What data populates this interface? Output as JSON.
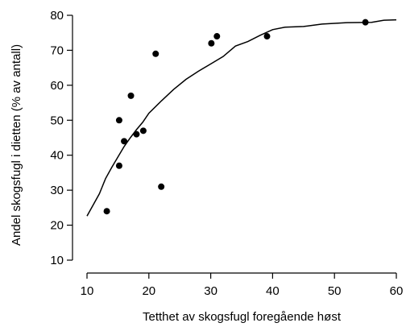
{
  "chart_data": {
    "type": "scatter",
    "title": "",
    "xlabel": "Tetthet av skogsfugl foregående høst",
    "ylabel": "Andel skogsfugl i dietten (% av antall)",
    "xlim": [
      10,
      60
    ],
    "ylim": [
      10,
      80
    ],
    "xticks": [
      10,
      20,
      30,
      40,
      50,
      60
    ],
    "yticks": [
      10,
      20,
      30,
      40,
      50,
      60,
      70,
      80
    ],
    "grid": false,
    "legend": "none",
    "series": [
      {
        "type": "scatter",
        "color": "#000000",
        "points": [
          {
            "x": 13.2,
            "y": 24
          },
          {
            "x": 15.2,
            "y": 37
          },
          {
            "x": 15.2,
            "y": 50
          },
          {
            "x": 16.0,
            "y": 44
          },
          {
            "x": 17.1,
            "y": 57
          },
          {
            "x": 18.0,
            "y": 46
          },
          {
            "x": 19.1,
            "y": 47
          },
          {
            "x": 21.1,
            "y": 69
          },
          {
            "x": 22.0,
            "y": 31
          },
          {
            "x": 30.1,
            "y": 72
          },
          {
            "x": 31.0,
            "y": 74
          },
          {
            "x": 39.1,
            "y": 74
          },
          {
            "x": 55.0,
            "y": 78
          }
        ]
      },
      {
        "type": "line",
        "color": "#000000",
        "points": [
          {
            "x": 10.0,
            "y": 22.6
          },
          {
            "x": 12.0,
            "y": 29.0
          },
          {
            "x": 13.0,
            "y": 33.3
          },
          {
            "x": 14.0,
            "y": 36.5
          },
          {
            "x": 15.0,
            "y": 39.5
          },
          {
            "x": 16.0,
            "y": 42.5
          },
          {
            "x": 17.0,
            "y": 45.0
          },
          {
            "x": 18.0,
            "y": 47.3
          },
          {
            "x": 19.0,
            "y": 49.4
          },
          {
            "x": 20.0,
            "y": 52.0
          },
          {
            "x": 22.0,
            "y": 55.5
          },
          {
            "x": 24.0,
            "y": 58.8
          },
          {
            "x": 26.0,
            "y": 61.7
          },
          {
            "x": 28.0,
            "y": 64.0
          },
          {
            "x": 30.0,
            "y": 66.1
          },
          {
            "x": 32.0,
            "y": 68.2
          },
          {
            "x": 34.0,
            "y": 71.2
          },
          {
            "x": 36.0,
            "y": 72.5
          },
          {
            "x": 38.0,
            "y": 74.3
          },
          {
            "x": 40.0,
            "y": 75.9
          },
          {
            "x": 42.0,
            "y": 76.6
          },
          {
            "x": 45.0,
            "y": 76.8
          },
          {
            "x": 48.0,
            "y": 77.5
          },
          {
            "x": 52.0,
            "y": 77.9
          },
          {
            "x": 56.0,
            "y": 78.0
          },
          {
            "x": 58.0,
            "y": 78.6
          },
          {
            "x": 60.0,
            "y": 78.7
          }
        ]
      }
    ]
  }
}
